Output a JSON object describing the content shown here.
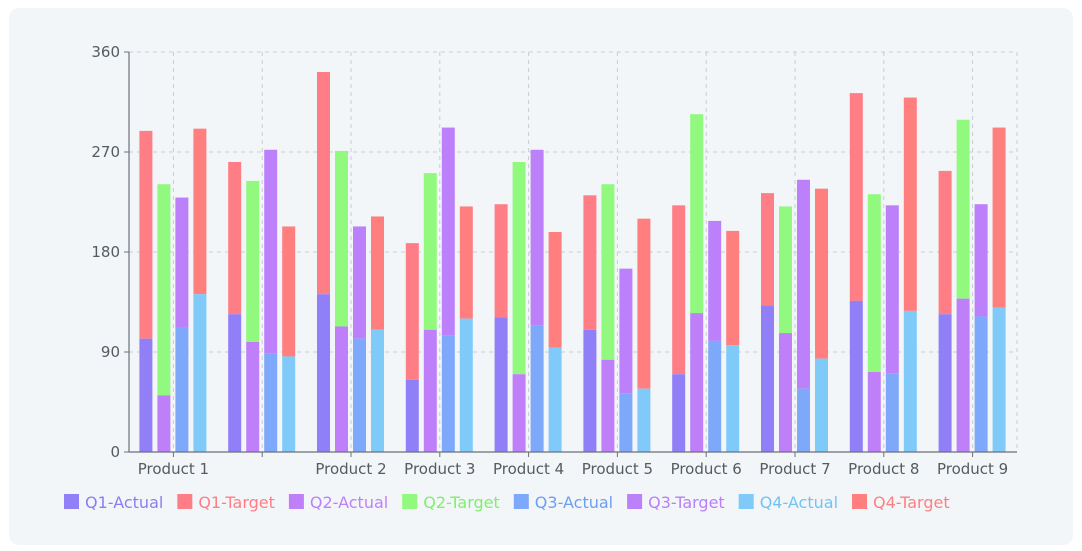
{
  "chart_data": {
    "type": "bar",
    "stacked": true,
    "categories": [
      "Product 1",
      "",
      "Product 2",
      "Product 3",
      "Product 4",
      "Product 5",
      "Product 6",
      "Product 7",
      "Product 8",
      "Product 9"
    ],
    "ylim": [
      0,
      360
    ],
    "yticks": [
      0,
      90,
      180,
      270,
      360
    ],
    "grid": true,
    "legend_position": "bottom",
    "bars": [
      {
        "group": 0,
        "actual": 102,
        "target": 289,
        "actual_series": "Q1-Actual",
        "target_series": "Q1-Target"
      },
      {
        "group": 0,
        "actual": 51,
        "target": 241,
        "actual_series": "Q2-Actual",
        "target_series": "Q2-Target"
      },
      {
        "group": 0,
        "actual": 112,
        "target": 229,
        "actual_series": "Q3-Actual",
        "target_series": "Q3-Target"
      },
      {
        "group": 0,
        "actual": 142,
        "target": 291,
        "actual_series": "Q4-Actual",
        "target_series": "Q4-Target"
      },
      {
        "group": 1,
        "actual": 124,
        "target": 261,
        "actual_series": "Q1-Actual",
        "target_series": "Q1-Target"
      },
      {
        "group": 1,
        "actual": 99,
        "target": 244,
        "actual_series": "Q2-Actual",
        "target_series": "Q2-Target"
      },
      {
        "group": 1,
        "actual": 89,
        "target": 272,
        "actual_series": "Q3-Actual",
        "target_series": "Q3-Target"
      },
      {
        "group": 1,
        "actual": 86,
        "target": 203,
        "actual_series": "Q4-Actual",
        "target_series": "Q4-Target"
      },
      {
        "group": 2,
        "actual": 142,
        "target": 342,
        "actual_series": "Q1-Actual",
        "target_series": "Q1-Target"
      },
      {
        "group": 2,
        "actual": 113,
        "target": 271,
        "actual_series": "Q2-Actual",
        "target_series": "Q2-Target"
      },
      {
        "group": 2,
        "actual": 102,
        "target": 203,
        "actual_series": "Q3-Actual",
        "target_series": "Q3-Target"
      },
      {
        "group": 2,
        "actual": 110,
        "target": 212,
        "actual_series": "Q4-Actual",
        "target_series": "Q4-Target"
      },
      {
        "group": 3,
        "actual": 65,
        "target": 188,
        "actual_series": "Q1-Actual",
        "target_series": "Q1-Target"
      },
      {
        "group": 3,
        "actual": 110,
        "target": 251,
        "actual_series": "Q2-Actual",
        "target_series": "Q2-Target"
      },
      {
        "group": 3,
        "actual": 105,
        "target": 292,
        "actual_series": "Q3-Actual",
        "target_series": "Q3-Target"
      },
      {
        "group": 3,
        "actual": 120,
        "target": 221,
        "actual_series": "Q4-Actual",
        "target_series": "Q4-Target"
      },
      {
        "group": 4,
        "actual": 121,
        "target": 223,
        "actual_series": "Q1-Actual",
        "target_series": "Q1-Target"
      },
      {
        "group": 4,
        "actual": 70,
        "target": 261,
        "actual_series": "Q2-Actual",
        "target_series": "Q2-Target"
      },
      {
        "group": 4,
        "actual": 114,
        "target": 272,
        "actual_series": "Q3-Actual",
        "target_series": "Q3-Target"
      },
      {
        "group": 4,
        "actual": 94,
        "target": 198,
        "actual_series": "Q4-Actual",
        "target_series": "Q4-Target"
      },
      {
        "group": 5,
        "actual": 110,
        "target": 231,
        "actual_series": "Q1-Actual",
        "target_series": "Q1-Target"
      },
      {
        "group": 5,
        "actual": 83,
        "target": 241,
        "actual_series": "Q2-Actual",
        "target_series": "Q2-Target"
      },
      {
        "group": 5,
        "actual": 53,
        "target": 165,
        "actual_series": "Q3-Actual",
        "target_series": "Q3-Target"
      },
      {
        "group": 5,
        "actual": 57,
        "target": 210,
        "actual_series": "Q4-Actual",
        "target_series": "Q4-Target"
      },
      {
        "group": 6,
        "actual": 70,
        "target": 222,
        "actual_series": "Q1-Actual",
        "target_series": "Q1-Target"
      },
      {
        "group": 6,
        "actual": 125,
        "target": 304,
        "actual_series": "Q2-Actual",
        "target_series": "Q2-Target"
      },
      {
        "group": 6,
        "actual": 100,
        "target": 208,
        "actual_series": "Q3-Actual",
        "target_series": "Q3-Target"
      },
      {
        "group": 6,
        "actual": 96,
        "target": 199,
        "actual_series": "Q4-Actual",
        "target_series": "Q4-Target"
      },
      {
        "group": 7,
        "actual": 132,
        "target": 233,
        "actual_series": "Q1-Actual",
        "target_series": "Q1-Target"
      },
      {
        "group": 7,
        "actual": 107,
        "target": 221,
        "actual_series": "Q2-Actual",
        "target_series": "Q2-Target"
      },
      {
        "group": 7,
        "actual": 57,
        "target": 245,
        "actual_series": "Q3-Actual",
        "target_series": "Q3-Target"
      },
      {
        "group": 7,
        "actual": 84,
        "target": 237,
        "actual_series": "Q4-Actual",
        "target_series": "Q4-Target"
      },
      {
        "group": 8,
        "actual": 136,
        "target": 323,
        "actual_series": "Q1-Actual",
        "target_series": "Q1-Target"
      },
      {
        "group": 8,
        "actual": 72,
        "target": 232,
        "actual_series": "Q2-Actual",
        "target_series": "Q2-Target"
      },
      {
        "group": 8,
        "actual": 71,
        "target": 222,
        "actual_series": "Q3-Actual",
        "target_series": "Q3-Target"
      },
      {
        "group": 8,
        "actual": 127,
        "target": 319,
        "actual_series": "Q4-Actual",
        "target_series": "Q4-Target"
      },
      {
        "group": 9,
        "actual": 124,
        "target": 253,
        "actual_series": "Q1-Actual",
        "target_series": "Q1-Target"
      },
      {
        "group": 9,
        "actual": 138,
        "target": 299,
        "actual_series": "Q2-Actual",
        "target_series": "Q2-Target"
      },
      {
        "group": 9,
        "actual": 122,
        "target": 223,
        "actual_series": "Q3-Actual",
        "target_series": "Q3-Target"
      },
      {
        "group": 9,
        "actual": 130,
        "target": 292,
        "actual_series": "Q4-Actual",
        "target_series": "Q4-Target"
      }
    ],
    "series_colors": {
      "Q1-Actual": "#917ff8",
      "Q1-Target": "#ff7d85",
      "Q2-Actual": "#bf7ff9",
      "Q2-Target": "#92f97f",
      "Q3-Actual": "#7ea8f9",
      "Q3-Target": "#bb80fa",
      "Q4-Actual": "#7fcaf9",
      "Q4-Target": "#ff7f7f"
    },
    "legend": [
      {
        "name": "Q1-Actual",
        "text_color": "#8f7cf0"
      },
      {
        "name": "Q1-Target",
        "text_color": "#ff7d85"
      },
      {
        "name": "Q2-Actual",
        "text_color": "#bf7ff9"
      },
      {
        "name": "Q2-Target",
        "text_color": "#7ef06a"
      },
      {
        "name": "Q3-Actual",
        "text_color": "#6e9ef0"
      },
      {
        "name": "Q3-Target",
        "text_color": "#b97ff8"
      },
      {
        "name": "Q4-Actual",
        "text_color": "#73c3f2"
      },
      {
        "name": "Q4-Target",
        "text_color": "#ff7f7f"
      }
    ]
  }
}
